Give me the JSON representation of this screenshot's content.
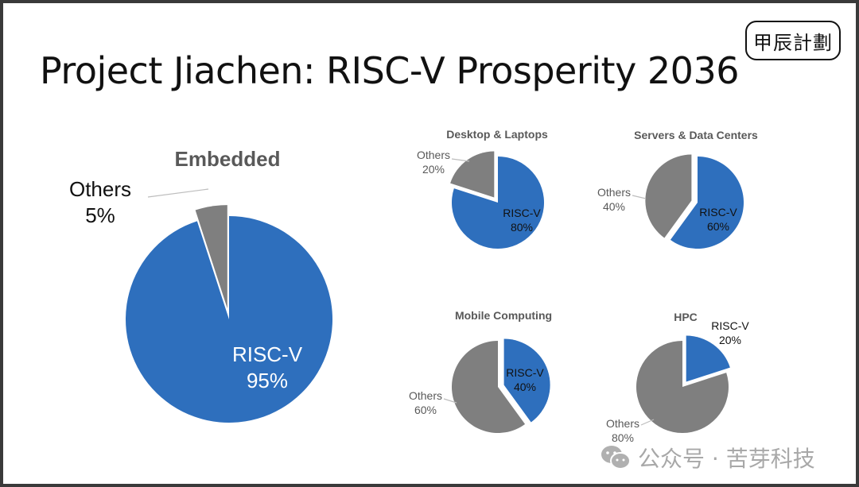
{
  "title": "Project Jiachen: RISC-V Prosperity 2036",
  "logo_text": "甲辰計劃",
  "watermark": {
    "icon": "wechat-icon",
    "text": "公众号 · 苦芽科技"
  },
  "colors": {
    "risc_v": "#2e6fbd",
    "others": "#7f7f7f"
  },
  "chart_data": [
    {
      "type": "pie",
      "title": "Embedded",
      "slices": [
        {
          "label": "RISC-V",
          "value": 95,
          "display": "95%"
        },
        {
          "label": "Others",
          "value": 5,
          "display": "5%"
        }
      ],
      "exploded": "Others"
    },
    {
      "type": "pie",
      "title": "Desktop & Laptops",
      "slices": [
        {
          "label": "RISC-V",
          "value": 80,
          "display": "80%"
        },
        {
          "label": "Others",
          "value": 20,
          "display": "20%"
        }
      ],
      "exploded": "Others"
    },
    {
      "type": "pie",
      "title": "Servers & Data Centers",
      "slices": [
        {
          "label": "RISC-V",
          "value": 60,
          "display": "60%"
        },
        {
          "label": "Others",
          "value": 40,
          "display": "40%"
        }
      ],
      "exploded": "Others"
    },
    {
      "type": "pie",
      "title": "Mobile Computing",
      "slices": [
        {
          "label": "RISC-V",
          "value": 40,
          "display": "40%"
        },
        {
          "label": "Others",
          "value": 60,
          "display": "60%"
        }
      ],
      "exploded": "RISC-V"
    },
    {
      "type": "pie",
      "title": "HPC",
      "slices": [
        {
          "label": "RISC-V",
          "value": 20,
          "display": "20%"
        },
        {
          "label": "Others",
          "value": 80,
          "display": "80%"
        }
      ],
      "exploded": "RISC-V"
    }
  ]
}
